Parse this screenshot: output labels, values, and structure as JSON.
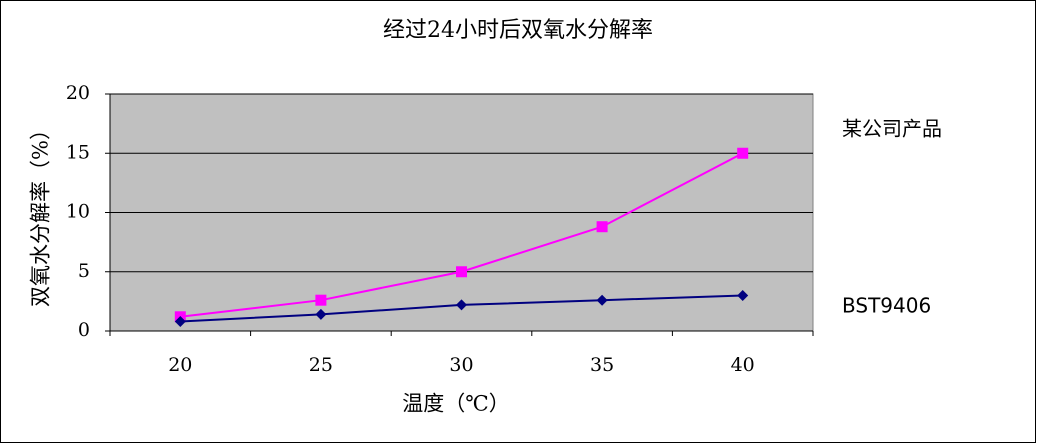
{
  "chart_data": {
    "type": "line",
    "title": "经过24小时后双氧水分解率",
    "x_label": "温度（℃）",
    "y_label": "双氧水分解率（%）",
    "categories": [
      20,
      25,
      30,
      35,
      40
    ],
    "series": [
      {
        "name": "某公司产品",
        "color": "#ff00ff",
        "marker": "square",
        "values": [
          1.2,
          2.6,
          5.0,
          8.8,
          15.0
        ]
      },
      {
        "name": "BST9406",
        "color": "#000080",
        "marker": "diamond",
        "values": [
          0.8,
          1.4,
          2.2,
          2.6,
          3.0
        ]
      }
    ],
    "ylim": [
      0,
      20
    ],
    "yticks": [
      0,
      5,
      10,
      15,
      20
    ],
    "grid": true,
    "legend": "right"
  }
}
